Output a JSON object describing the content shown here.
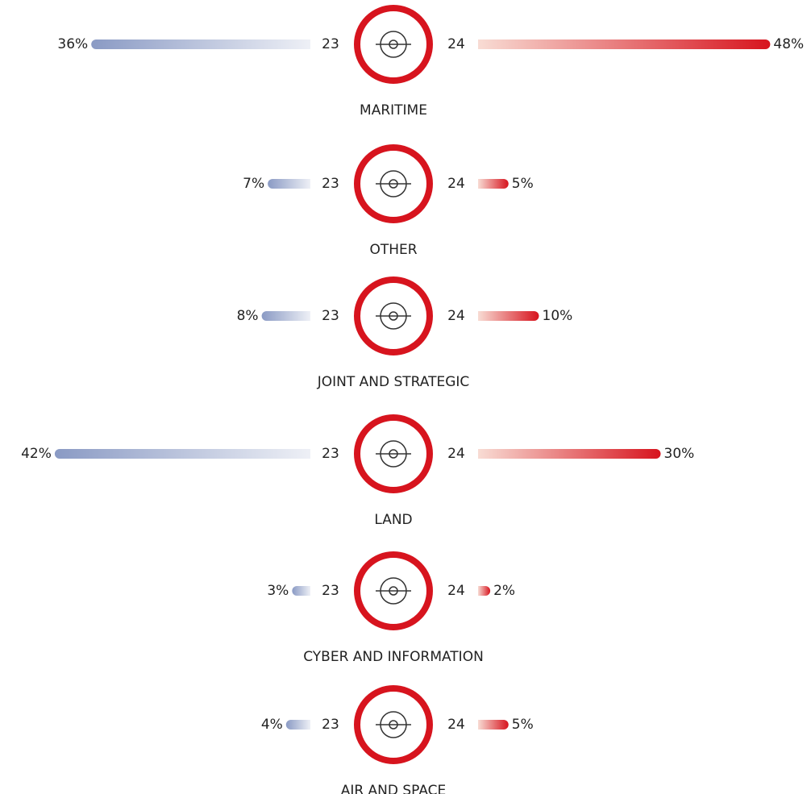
{
  "chart_data": {
    "type": "butterfly-bar",
    "categories": [
      "MARITIME",
      "OTHER",
      "JOINT AND STRATEGIC",
      "LAND",
      "CYBER AND INFORMATION",
      "AIR AND SPACE"
    ],
    "series": [
      {
        "name": "23",
        "color": "#8a9ac4",
        "values": [
          36,
          7,
          8,
          42,
          3,
          4
        ],
        "value_labels": [
          "36%",
          "7%",
          "8%",
          "42%",
          "3%",
          "4%"
        ]
      },
      {
        "name": "24",
        "color": "#d7141e",
        "values": [
          48,
          5,
          10,
          30,
          2,
          5
        ],
        "value_labels": [
          "48%",
          "5%",
          "10%",
          "30%",
          "2%",
          "5%"
        ]
      }
    ]
  }
}
